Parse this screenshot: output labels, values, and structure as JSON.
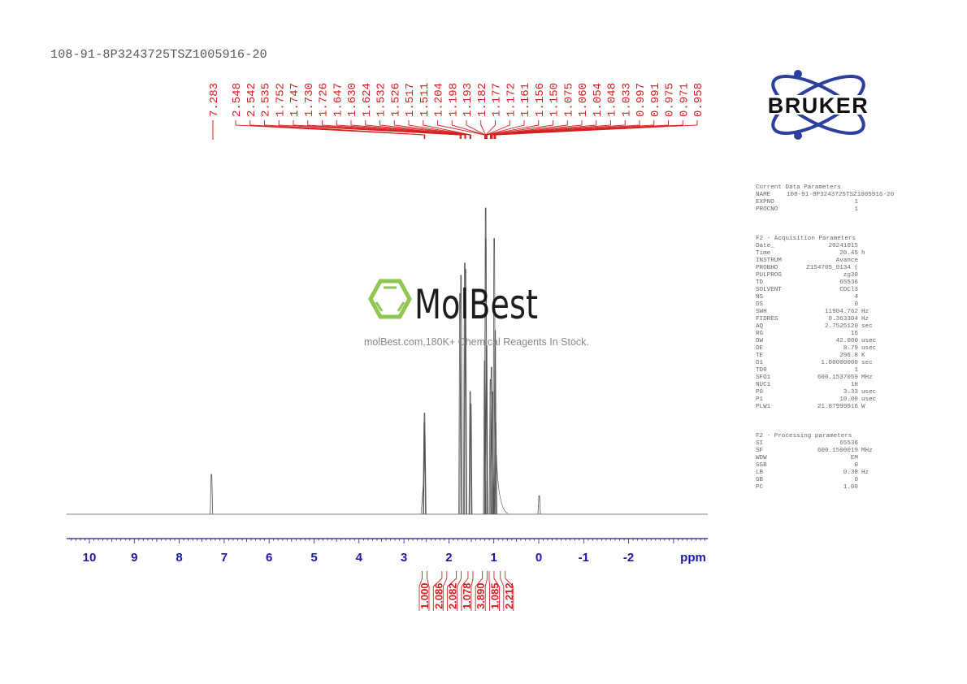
{
  "sample_title": "108-91-8P3243725TSZ1005916-20",
  "logo": {
    "brand": "BRUKER",
    "brand_color": "#2a3f9e"
  },
  "watermark": {
    "name": "MolBest",
    "tagline": "molBest.com,180K+ Chemical Reagents In Stock.",
    "icon_color": "#8bc34a"
  },
  "colors": {
    "axis": "#1a1aa8",
    "peak_labels": "#d42020",
    "spectrum": "#555555"
  },
  "parameters": {
    "current": {
      "title": "Current Data Parameters",
      "rows": [
        {
          "k": "NAME",
          "v": "108-91-8P3243725TSZ1005916-20",
          "u": ""
        },
        {
          "k": "EXPNO",
          "v": "1",
          "u": ""
        },
        {
          "k": "PROCNO",
          "v": "1",
          "u": ""
        }
      ]
    },
    "acquisition": {
      "title": "F2 - Acquisition Parameters",
      "rows": [
        {
          "k": "Date_",
          "v": "20241015",
          "u": ""
        },
        {
          "k": "Time",
          "v": "20.45",
          "u": "h"
        },
        {
          "k": "INSTRUM",
          "v": "Avance",
          "u": ""
        },
        {
          "k": "PROBHD",
          "v": "Z154705_0134 (",
          "u": ""
        },
        {
          "k": "PULPROG",
          "v": "zg30",
          "u": ""
        },
        {
          "k": "TD",
          "v": "65536",
          "u": ""
        },
        {
          "k": "SOLVENT",
          "v": "CDCl3",
          "u": ""
        },
        {
          "k": "NS",
          "v": "4",
          "u": ""
        },
        {
          "k": "DS",
          "v": "0",
          "u": ""
        },
        {
          "k": "SWH",
          "v": "11904.762",
          "u": "Hz"
        },
        {
          "k": "FIDRES",
          "v": "0.363304",
          "u": "Hz"
        },
        {
          "k": "AQ",
          "v": "2.7525120",
          "u": "sec"
        },
        {
          "k": "RG",
          "v": "16",
          "u": ""
        },
        {
          "k": "DW",
          "v": "42.000",
          "u": "usec"
        },
        {
          "k": "DE",
          "v": "8.79",
          "u": "usec"
        },
        {
          "k": "TE",
          "v": "296.8",
          "u": "K"
        },
        {
          "k": "D1",
          "v": "1.00000000",
          "u": "sec"
        },
        {
          "k": "TD0",
          "v": "1",
          "u": ""
        },
        {
          "k": "SFO1",
          "v": "600.1537059",
          "u": "MHz"
        },
        {
          "k": "NUC1",
          "v": "1H",
          "u": ""
        },
        {
          "k": "P0",
          "v": "3.33",
          "u": "usec"
        },
        {
          "k": "P1",
          "v": "10.00",
          "u": "usec"
        },
        {
          "k": "PLW1",
          "v": "21.87999916",
          "u": "W"
        }
      ]
    },
    "processing": {
      "title": "F2 - Processing parameters",
      "rows": [
        {
          "k": "SI",
          "v": "65536",
          "u": ""
        },
        {
          "k": "SF",
          "v": "600.1500019",
          "u": "MHz"
        },
        {
          "k": "WDW",
          "v": "EM",
          "u": ""
        },
        {
          "k": "SSB",
          "v": "0",
          "u": ""
        },
        {
          "k": "LB",
          "v": "0.30",
          "u": "Hz"
        },
        {
          "k": "GB",
          "v": "0",
          "u": ""
        },
        {
          "k": "PC",
          "v": "1.00",
          "u": ""
        }
      ]
    }
  },
  "chart_data": {
    "type": "line",
    "title": "1H NMR spectrum 108-91-8P3243725TSZ1005916-20",
    "xlabel": "ppm",
    "ylabel": "",
    "xlim": [
      10.5,
      -3.7
    ],
    "x_reversed": true,
    "x_ticks": [
      10,
      9,
      8,
      7,
      6,
      5,
      4,
      3,
      2,
      1,
      0,
      -1,
      -2
    ],
    "x_tick_labels": [
      "10",
      "9",
      "8",
      "7",
      "6",
      "5",
      "4",
      "3",
      "2",
      "1",
      "0",
      "-1",
      "-2"
    ],
    "grid": false,
    "peak_labels": [
      7.283,
      2.548,
      2.542,
      2.535,
      1.752,
      1.747,
      1.73,
      1.726,
      1.647,
      1.63,
      1.624,
      1.532,
      1.526,
      1.517,
      1.511,
      1.204,
      1.198,
      1.193,
      1.182,
      1.177,
      1.172,
      1.161,
      1.156,
      1.15,
      1.075,
      1.06,
      1.054,
      1.048,
      1.033,
      0.997,
      0.991,
      0.975,
      0.971,
      0.958
    ],
    "peaks": [
      {
        "ppm": 7.283,
        "height": 0.13
      },
      {
        "ppm": 2.548,
        "height": 0.3
      },
      {
        "ppm": 2.542,
        "height": 0.33
      },
      {
        "ppm": 2.535,
        "height": 0.26
      },
      {
        "ppm": 1.752,
        "height": 0.72
      },
      {
        "ppm": 1.73,
        "height": 0.78
      },
      {
        "ppm": 1.647,
        "height": 0.82
      },
      {
        "ppm": 1.63,
        "height": 0.8
      },
      {
        "ppm": 1.526,
        "height": 0.4
      },
      {
        "ppm": 1.511,
        "height": 0.36
      },
      {
        "ppm": 1.204,
        "height": 0.5
      },
      {
        "ppm": 1.182,
        "height": 1.0
      },
      {
        "ppm": 1.177,
        "height": 0.9
      },
      {
        "ppm": 1.161,
        "height": 0.55
      },
      {
        "ppm": 1.075,
        "height": 0.44
      },
      {
        "ppm": 1.054,
        "height": 0.48
      },
      {
        "ppm": 1.033,
        "height": 0.4
      },
      {
        "ppm": 0.991,
        "height": 0.9
      },
      {
        "ppm": 0.971,
        "height": 0.6
      },
      {
        "ppm": 0.958,
        "height": 0.3
      },
      {
        "ppm": -0.01,
        "height": 0.06
      }
    ],
    "integrals": [
      {
        "center_ppm": 2.54,
        "value": "1.000"
      },
      {
        "center_ppm": 2.1,
        "value": "2.086"
      },
      {
        "center_ppm": 1.78,
        "value": "2.082"
      },
      {
        "center_ppm": 1.52,
        "value": "1.078"
      },
      {
        "center_ppm": 1.2,
        "value": "3.890"
      },
      {
        "center_ppm": 1.05,
        "value": "1.085"
      },
      {
        "center_ppm": 0.8,
        "value": "2.212"
      }
    ]
  }
}
